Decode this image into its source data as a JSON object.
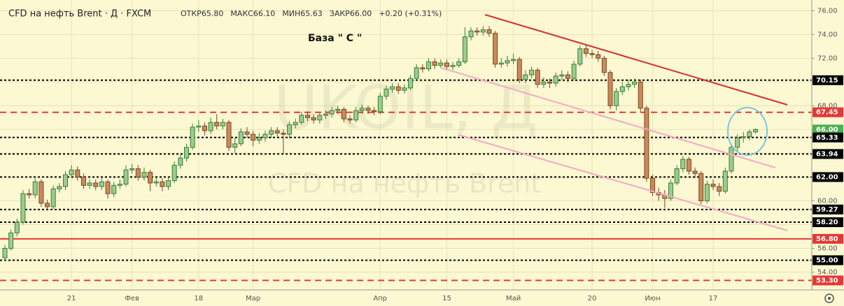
{
  "chart_data": {
    "type": "candlestick",
    "title": "CFD на нефть Brent · Д · FXCM",
    "stats": [
      "ОТКР65.80",
      "МАКС66.10",
      "МИН65.63",
      "ЗАКР66.00",
      "+0.20 (+0.31%)"
    ],
    "annotation": "База \" С \"",
    "watermark": [
      "UKOIL, Д",
      "CFD на нефть Brent"
    ],
    "up_color": "#9ccc8c",
    "up_border": "#3a7d3a",
    "down_color": "#c98a5c",
    "down_border": "#7a4520",
    "grid": true,
    "ylim": [
      52.5,
      76.9
    ],
    "yticks": [
      {
        "value": 54,
        "label": "54.00"
      },
      {
        "value": 56,
        "label": "56.00"
      },
      {
        "value": 58,
        "label": "58.00"
      },
      {
        "value": 60,
        "label": "60.00"
      },
      {
        "value": 62,
        "label": "62.00"
      },
      {
        "value": 64,
        "label": "64.00"
      },
      {
        "value": 66,
        "label": "66.00"
      },
      {
        "value": 68,
        "label": "68.00"
      },
      {
        "value": 70,
        "label": "70.00"
      },
      {
        "value": 72,
        "label": "72.00"
      },
      {
        "value": 74,
        "label": "74.00"
      },
      {
        "value": 76,
        "label": "76.00"
      }
    ],
    "levels": [
      {
        "value": 70.15,
        "label": "70.15",
        "color": "#000000",
        "style": "dotted"
      },
      {
        "value": 67.45,
        "label": "67.45",
        "color": "#e53935",
        "style": "dashed"
      },
      {
        "value": 66.0,
        "label": "66.00",
        "color": "#4caf50",
        "style": "none"
      },
      {
        "value": 65.33,
        "label": "65.33",
        "color": "#000000",
        "style": "dotted"
      },
      {
        "value": 63.94,
        "label": "63.94",
        "color": "#000000",
        "style": "dotted"
      },
      {
        "value": 62.0,
        "label": "62.00",
        "color": "#000000",
        "style": "dotted"
      },
      {
        "value": 59.27,
        "label": "59.27",
        "color": "#000000",
        "style": "dotted"
      },
      {
        "value": 58.2,
        "label": "58.20",
        "color": "#000000",
        "style": "dotted"
      },
      {
        "value": 56.8,
        "label": "56.80",
        "color": "#e53935",
        "style": "solid"
      },
      {
        "value": 55.0,
        "label": "55.00",
        "color": "#000000",
        "style": "dotted"
      },
      {
        "value": 53.3,
        "label": "53.30",
        "color": "#e53935",
        "style": "dashed"
      }
    ],
    "categories": [
      null,
      null,
      null,
      null,
      null,
      null,
      null,
      null,
      null,
      null,
      null,
      "21",
      null,
      null,
      null,
      null,
      null,
      null,
      null,
      null,
      null,
      "Фев",
      null,
      null,
      null,
      null,
      null,
      null,
      null,
      null,
      null,
      null,
      "18",
      null,
      null,
      null,
      null,
      null,
      null,
      null,
      null,
      "Мар",
      null,
      null,
      null,
      null,
      null,
      null,
      null,
      null,
      null,
      null,
      null,
      null,
      null,
      null,
      null,
      null,
      null,
      null,
      null,
      null,
      "Апр",
      null,
      null,
      null,
      null,
      null,
      null,
      null,
      null,
      null,
      null,
      "15",
      null,
      null,
      null,
      null,
      null,
      null,
      null,
      null,
      null,
      null,
      "Май",
      null,
      null,
      null,
      null,
      null,
      null,
      null,
      null,
      null,
      null,
      null,
      null,
      "20",
      null,
      null,
      null,
      null,
      null,
      null,
      null,
      null,
      null,
      "Июн",
      null,
      null,
      null,
      null,
      null,
      null,
      null,
      null,
      null,
      "17",
      null,
      null,
      null,
      null,
      null,
      null,
      null
    ],
    "candles": [
      [
        55.2,
        56.3,
        54.9,
        56.0
      ],
      [
        56.0,
        57.6,
        55.8,
        57.3
      ],
      [
        57.3,
        58.5,
        57.0,
        58.2
      ],
      [
        58.2,
        60.9,
        58.0,
        60.6
      ],
      [
        60.6,
        61.0,
        60.2,
        60.5
      ],
      [
        60.5,
        61.9,
        60.2,
        61.6
      ],
      [
        61.6,
        61.8,
        59.5,
        59.8
      ],
      [
        59.8,
        60.1,
        59.2,
        59.5
      ],
      [
        59.5,
        61.3,
        59.3,
        61.0
      ],
      [
        61.0,
        61.5,
        60.7,
        61.2
      ],
      [
        61.2,
        62.5,
        60.9,
        62.2
      ],
      [
        62.2,
        63.0,
        61.9,
        62.6
      ],
      [
        62.6,
        62.9,
        61.7,
        62.0
      ],
      [
        62.0,
        62.3,
        61.0,
        61.3
      ],
      [
        61.3,
        61.8,
        61.0,
        61.5
      ],
      [
        61.5,
        61.8,
        60.9,
        61.2
      ],
      [
        61.2,
        61.9,
        60.9,
        61.6
      ],
      [
        61.6,
        61.8,
        60.2,
        60.6
      ],
      [
        60.6,
        61.6,
        60.3,
        61.3
      ],
      [
        61.3,
        61.8,
        61.0,
        61.4
      ],
      [
        61.4,
        63.0,
        61.2,
        62.6
      ],
      [
        62.6,
        63.1,
        62.3,
        62.7
      ],
      [
        62.7,
        63.0,
        61.7,
        62.0
      ],
      [
        62.0,
        62.8,
        61.7,
        62.4
      ],
      [
        62.4,
        62.6,
        60.8,
        61.5
      ],
      [
        61.5,
        62.0,
        61.2,
        61.6
      ],
      [
        61.6,
        61.9,
        60.8,
        61.2
      ],
      [
        61.2,
        62.0,
        60.9,
        61.7
      ],
      [
        61.7,
        63.3,
        61.5,
        63.0
      ],
      [
        63.0,
        63.9,
        62.7,
        63.6
      ],
      [
        63.6,
        64.8,
        63.3,
        64.5
      ],
      [
        64.5,
        66.5,
        64.3,
        66.2
      ],
      [
        66.2,
        66.8,
        65.8,
        66.3
      ],
      [
        66.3,
        66.6,
        65.5,
        65.9
      ],
      [
        65.9,
        67.0,
        65.6,
        66.6
      ],
      [
        66.6,
        67.3,
        66.0,
        66.3
      ],
      [
        66.3,
        66.9,
        66.0,
        66.6
      ],
      [
        66.6,
        66.8,
        64.2,
        64.5
      ],
      [
        64.5,
        65.3,
        64.0,
        64.8
      ],
      [
        64.8,
        66.1,
        64.6,
        65.8
      ],
      [
        65.8,
        66.2,
        65.3,
        65.6
      ],
      [
        65.6,
        65.9,
        64.6,
        65.1
      ],
      [
        65.1,
        65.7,
        64.8,
        65.3
      ],
      [
        65.3,
        65.9,
        65.0,
        65.6
      ],
      [
        65.6,
        66.2,
        65.3,
        65.9
      ],
      [
        65.9,
        66.2,
        65.4,
        65.7
      ],
      [
        65.7,
        66.0,
        63.9,
        65.6
      ],
      [
        65.6,
        66.7,
        65.3,
        66.4
      ],
      [
        66.4,
        66.9,
        66.1,
        66.6
      ],
      [
        66.6,
        67.5,
        66.4,
        67.2
      ],
      [
        67.2,
        67.5,
        66.7,
        67.0
      ],
      [
        67.0,
        67.3,
        66.5,
        66.8
      ],
      [
        66.8,
        67.5,
        66.5,
        67.2
      ],
      [
        67.2,
        67.6,
        66.9,
        67.3
      ],
      [
        67.3,
        67.9,
        67.0,
        67.6
      ],
      [
        67.6,
        68.0,
        67.3,
        67.7
      ],
      [
        67.7,
        67.9,
        66.6,
        66.9
      ],
      [
        66.9,
        67.2,
        66.5,
        66.8
      ],
      [
        66.8,
        67.9,
        66.6,
        67.6
      ],
      [
        67.6,
        68.1,
        67.3,
        67.8
      ],
      [
        67.8,
        68.0,
        67.3,
        67.6
      ],
      [
        67.6,
        67.9,
        67.2,
        67.5
      ],
      [
        67.5,
        69.1,
        67.3,
        68.8
      ],
      [
        68.8,
        69.7,
        68.5,
        69.4
      ],
      [
        69.4,
        69.9,
        69.1,
        69.6
      ],
      [
        69.6,
        69.9,
        69.0,
        69.3
      ],
      [
        69.3,
        69.8,
        69.0,
        69.5
      ],
      [
        69.5,
        70.6,
        69.3,
        70.3
      ],
      [
        70.3,
        71.5,
        70.1,
        71.2
      ],
      [
        71.2,
        71.5,
        70.8,
        71.1
      ],
      [
        71.1,
        72.0,
        70.9,
        71.7
      ],
      [
        71.7,
        72.0,
        71.1,
        71.4
      ],
      [
        71.4,
        71.9,
        71.2,
        71.6
      ],
      [
        71.6,
        71.9,
        71.0,
        71.3
      ],
      [
        71.3,
        71.7,
        71.0,
        71.4
      ],
      [
        71.4,
        72.0,
        71.2,
        71.7
      ],
      [
        71.7,
        74.6,
        71.5,
        73.8
      ],
      [
        73.8,
        74.6,
        73.5,
        74.3
      ],
      [
        74.3,
        74.6,
        73.9,
        74.2
      ],
      [
        74.2,
        74.7,
        73.9,
        74.4
      ],
      [
        74.4,
        74.7,
        73.8,
        74.1
      ],
      [
        74.1,
        74.3,
        71.2,
        71.5
      ],
      [
        71.5,
        72.0,
        71.2,
        71.6
      ],
      [
        71.6,
        72.2,
        71.3,
        71.8
      ],
      [
        71.8,
        72.4,
        71.5,
        71.9
      ],
      [
        71.9,
        72.1,
        69.9,
        70.2
      ],
      [
        70.2,
        71.0,
        69.9,
        70.6
      ],
      [
        70.6,
        71.3,
        70.3,
        71.0
      ],
      [
        71.0,
        71.2,
        69.5,
        69.8
      ],
      [
        69.8,
        70.4,
        69.5,
        70.0
      ],
      [
        70.0,
        70.3,
        69.5,
        69.9
      ],
      [
        69.9,
        70.8,
        69.6,
        70.5
      ],
      [
        70.5,
        71.0,
        70.2,
        70.6
      ],
      [
        70.6,
        70.9,
        70.0,
        70.3
      ],
      [
        70.3,
        71.8,
        70.1,
        71.5
      ],
      [
        71.5,
        73.1,
        71.3,
        72.8
      ],
      [
        72.8,
        73.1,
        72.1,
        72.4
      ],
      [
        72.4,
        72.7,
        72.0,
        72.3
      ],
      [
        72.3,
        72.6,
        71.7,
        72.0
      ],
      [
        72.0,
        72.2,
        70.5,
        70.8
      ],
      [
        70.8,
        71.0,
        67.7,
        68.0
      ],
      [
        68.0,
        69.5,
        67.6,
        69.2
      ],
      [
        69.2,
        70.0,
        68.9,
        69.6
      ],
      [
        69.6,
        70.2,
        69.3,
        69.8
      ],
      [
        69.8,
        70.3,
        69.5,
        70.0
      ],
      [
        70.0,
        70.2,
        67.5,
        67.8
      ],
      [
        67.8,
        68.0,
        61.6,
        61.9
      ],
      [
        61.9,
        62.2,
        60.4,
        60.7
      ],
      [
        60.7,
        61.1,
        60.0,
        60.5
      ],
      [
        60.5,
        60.9,
        59.4,
        60.2
      ],
      [
        60.2,
        61.8,
        60.0,
        61.5
      ],
      [
        61.5,
        63.0,
        61.3,
        62.7
      ],
      [
        62.7,
        63.8,
        62.4,
        63.5
      ],
      [
        63.5,
        63.7,
        62.2,
        62.5
      ],
      [
        62.5,
        62.8,
        61.9,
        62.3
      ],
      [
        62.3,
        62.5,
        59.7,
        60.0
      ],
      [
        60.0,
        61.7,
        59.8,
        61.4
      ],
      [
        61.4,
        61.8,
        60.9,
        61.2
      ],
      [
        61.2,
        61.5,
        60.4,
        60.8
      ],
      [
        60.8,
        62.8,
        60.6,
        62.5
      ],
      [
        62.5,
        64.8,
        62.3,
        64.5
      ],
      [
        64.5,
        65.6,
        64.2,
        65.3
      ],
      [
        65.3,
        65.8,
        64.9,
        65.4
      ],
      [
        65.4,
        66.0,
        65.1,
        65.8
      ],
      [
        65.8,
        66.1,
        65.63,
        66.0
      ]
    ]
  }
}
